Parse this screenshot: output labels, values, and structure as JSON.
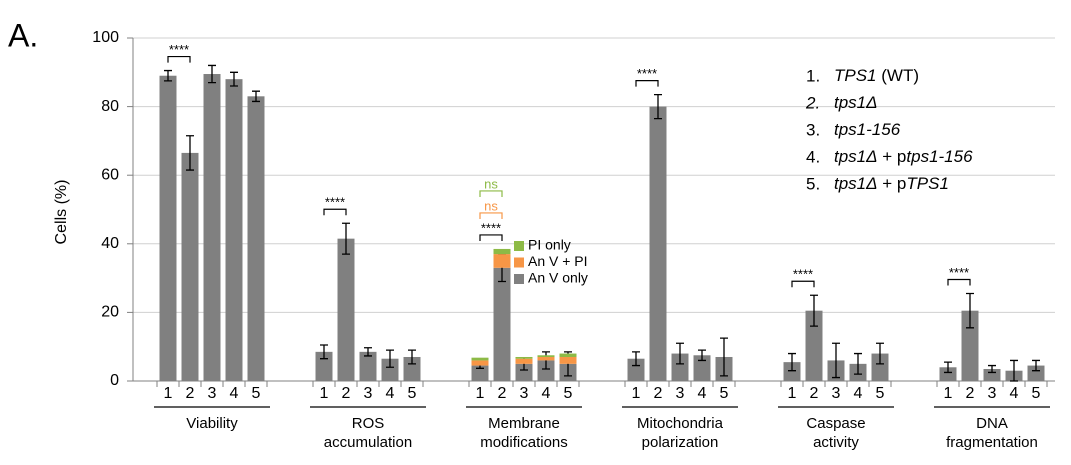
{
  "chart_data": {
    "type": "bar",
    "panel_label": "A.",
    "ylabel": "Cells  (%)",
    "ylim": [
      0,
      100
    ],
    "yticks": [
      0,
      20,
      40,
      60,
      80,
      100
    ],
    "grid": true,
    "color": "#808080",
    "groups": [
      {
        "label": [
          "Viability"
        ],
        "categories": [
          "1",
          "2",
          "3",
          "4",
          "5"
        ],
        "values": [
          89,
          66.5,
          89.5,
          88,
          83
        ],
        "errors": [
          1.5,
          5,
          2.5,
          2,
          1.5
        ],
        "brackets": [
          {
            "text": "****",
            "color": "#000000"
          }
        ]
      },
      {
        "label": [
          "ROS",
          "accumulation"
        ],
        "categories": [
          "1",
          "2",
          "3",
          "4",
          "5"
        ],
        "values": [
          8.5,
          41.5,
          8.5,
          6.5,
          7
        ],
        "errors": [
          2,
          4.5,
          1.2,
          2.5,
          2
        ],
        "brackets": [
          {
            "text": "****",
            "color": "#000000"
          }
        ]
      },
      {
        "label": [
          "Membrane",
          "modifications"
        ],
        "categories": [
          "1",
          "2",
          "3",
          "4",
          "5"
        ],
        "series": [
          {
            "name": "An V only",
            "color": "#808080",
            "values": [
              4.5,
              33,
              5,
              6,
              5
            ],
            "errors": [
              0.8,
              4,
              1.8,
              2.5,
              3.5
            ]
          },
          {
            "name": "An V + PI",
            "color": "#f79646",
            "values": [
              1.5,
              4,
              1.5,
              1,
              2
            ]
          },
          {
            "name": "PI only",
            "color": "#8dba46",
            "values": [
              0.8,
              1.5,
              0.5,
              0.5,
              1
            ]
          }
        ],
        "brackets": [
          {
            "text": "****",
            "color": "#000000"
          },
          {
            "text": "ns",
            "color": "#f79646"
          },
          {
            "text": "ns",
            "color": "#8dba46"
          }
        ]
      },
      {
        "label": [
          "Mitochondria",
          "polarization"
        ],
        "categories": [
          "1",
          "2",
          "3",
          "4",
          "5"
        ],
        "values": [
          6.5,
          80,
          8,
          7.5,
          7
        ],
        "errors": [
          2,
          3.5,
          3,
          1.5,
          5.5
        ],
        "brackets": [
          {
            "text": "****",
            "color": "#000000"
          }
        ]
      },
      {
        "label": [
          "Caspase",
          "activity"
        ],
        "categories": [
          "1",
          "2",
          "3",
          "4",
          "5"
        ],
        "values": [
          5.5,
          20.5,
          6,
          5,
          8
        ],
        "errors": [
          2.5,
          4.5,
          5,
          3,
          3
        ],
        "brackets": [
          {
            "text": "****",
            "color": "#000000"
          }
        ]
      },
      {
        "label": [
          "DNA",
          "fragmentation"
        ],
        "categories": [
          "1",
          "2",
          "3",
          "4",
          "5"
        ],
        "values": [
          4,
          20.5,
          3.5,
          3,
          4.5
        ],
        "errors": [
          1.5,
          5,
          1,
          3,
          1.5
        ],
        "brackets": [
          {
            "text": "****",
            "color": "#000000"
          }
        ]
      }
    ],
    "key": [
      {
        "number": "1.",
        "parts": [
          {
            "text": "TPS1",
            "italic": true
          },
          {
            "text": " (WT)",
            "italic": false
          }
        ]
      },
      {
        "number": "2.",
        "number_italic": true,
        "parts": [
          {
            "text": "tps1Δ",
            "italic": true
          }
        ]
      },
      {
        "number": "3.",
        "parts": [
          {
            "text": "tps1-156",
            "italic": true
          }
        ]
      },
      {
        "number": "4.",
        "parts": [
          {
            "text": "tps1Δ",
            "italic": true
          },
          {
            "text": " + p",
            "italic": false
          },
          {
            "text": "tps1-156",
            "italic": true
          }
        ]
      },
      {
        "number": "5.",
        "parts": [
          {
            "text": "tps1Δ",
            "italic": true
          },
          {
            "text": " + p",
            "italic": false
          },
          {
            "text": "TPS1",
            "italic": true
          }
        ]
      }
    ]
  }
}
